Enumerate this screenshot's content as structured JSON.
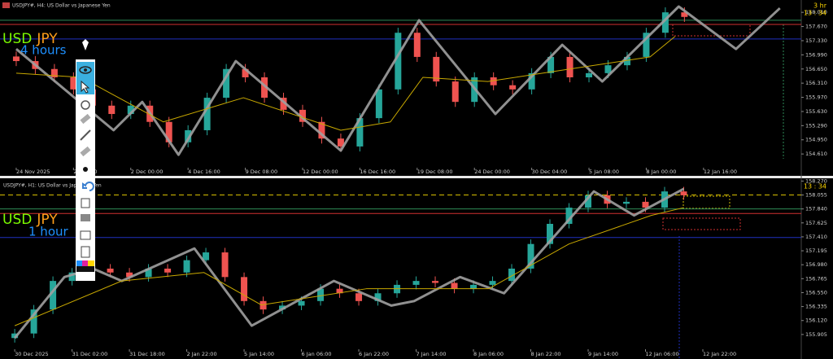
{
  "chart_data": [
    {
      "type": "candlestick",
      "title": "USDJPY#, H4:  US Dollar vs Japanese Yen",
      "label": {
        "base": "USD",
        "quote": "JPY",
        "timeframe": "4 hours"
      },
      "timer": [
        "3 hr",
        "13 : 34"
      ],
      "up_color": "#26a69a",
      "down_color": "#ef5350",
      "x": [
        0,
        1,
        2,
        3,
        4,
        5,
        6,
        7,
        8,
        9,
        10,
        11,
        12,
        13,
        14,
        15,
        16,
        17,
        18,
        19,
        20,
        21,
        22,
        23,
        24,
        25,
        26,
        27,
        28,
        29,
        30,
        31,
        32,
        33,
        34,
        35
      ],
      "open": [
        156.95,
        156.84,
        156.65,
        156.45,
        156.16,
        155.77,
        155.57,
        155.77,
        155.38,
        154.89,
        155.18,
        155.96,
        156.65,
        156.45,
        155.96,
        155.67,
        155.38,
        154.98,
        154.79,
        155.47,
        156.16,
        157.52,
        156.94,
        156.35,
        155.86,
        156.45,
        156.26,
        156.16,
        156.55,
        156.94,
        156.45,
        156.55,
        156.74,
        156.94,
        157.52,
        158.01
      ],
      "high": [
        157.07,
        156.96,
        156.77,
        156.57,
        156.28,
        155.89,
        155.89,
        155.89,
        155.5,
        155.3,
        156.08,
        156.77,
        156.77,
        156.57,
        156.08,
        155.79,
        155.5,
        155.1,
        155.59,
        156.28,
        157.64,
        157.64,
        157.06,
        156.47,
        156.57,
        156.57,
        156.38,
        156.67,
        157.06,
        157.06,
        156.67,
        156.86,
        157.06,
        157.64,
        158.13,
        158.13
      ],
      "low": [
        156.72,
        156.53,
        156.33,
        156.04,
        155.65,
        155.45,
        155.45,
        155.26,
        154.77,
        154.77,
        155.06,
        155.84,
        156.33,
        155.84,
        155.55,
        155.26,
        154.86,
        154.67,
        154.67,
        155.35,
        156.04,
        156.82,
        156.23,
        155.74,
        155.74,
        156.14,
        156.04,
        156.04,
        156.43,
        156.33,
        156.33,
        156.43,
        156.62,
        156.82,
        157.4,
        157.78
      ],
      "close": [
        156.84,
        156.65,
        156.45,
        156.16,
        155.77,
        155.57,
        155.77,
        155.38,
        154.89,
        155.18,
        155.96,
        156.65,
        156.45,
        155.96,
        155.67,
        155.38,
        154.98,
        154.79,
        155.47,
        156.16,
        157.52,
        156.94,
        156.35,
        155.86,
        156.45,
        156.26,
        156.16,
        156.55,
        156.94,
        156.45,
        156.55,
        156.74,
        156.94,
        157.52,
        158.01,
        157.9
      ],
      "series": [
        {
          "color": "#a0a0a0",
          "x": [
            0,
            5.1,
            6.6,
            8.5,
            11.5,
            17,
            21.1,
            25.1,
            28.6,
            30.7,
            34.7,
            37.7,
            40
          ],
          "values": [
            157.13,
            155.18,
            155.86,
            154.59,
            156.84,
            154.69,
            157.82,
            155.57,
            157.23,
            156.35,
            158.15,
            157.13,
            158.11
          ]
        },
        {
          "color": "#c8a800",
          "x": [
            0,
            3.4,
            7.7,
            11.9,
            17,
            19.6,
            21.3,
            24.7,
            29,
            33.2,
            34.5
          ],
          "values": [
            156.55,
            156.45,
            155.38,
            155.96,
            155.18,
            155.38,
            156.45,
            156.35,
            156.65,
            156.94,
            157.43
          ]
        }
      ],
      "levels": [
        {
          "value": 157.82,
          "color": "#2e8b57"
        },
        {
          "value": 157.72,
          "color": "#d03030"
        },
        {
          "value": 157.37,
          "color": "#2030c0"
        }
      ],
      "xlim": [
        -0.85,
        41.12
      ],
      "ylim": [
        154.3,
        158.15
      ],
      "xticks": [
        {
          "value": 0,
          "label": "24 Nov 2025"
        },
        {
          "value": 3,
          "label": "27 Nov 0"
        },
        {
          "value": 6,
          "label": "2 Dec 00:00"
        },
        {
          "value": 9,
          "label": "4 Dec 16:00"
        },
        {
          "value": 12,
          "label": "9 Dec 08:00"
        },
        {
          "value": 15,
          "label": "12 Dec 00:00"
        },
        {
          "value": 18,
          "label": "16 Dec 16:00"
        },
        {
          "value": 21,
          "label": "19 Dec 08:00"
        },
        {
          "value": 24,
          "label": "24 Dec 00:00"
        },
        {
          "value": 27,
          "label": "30 Dec 04:00"
        },
        {
          "value": 30,
          "label": "5 Jan 08:00"
        },
        {
          "value": 33,
          "label": "8 Jan 00:00"
        },
        {
          "value": 36,
          "label": "12 Jan 16:00"
        }
      ],
      "yticks": [
        {
          "value": 158.01,
          "label": "158.010"
        },
        {
          "value": 157.67,
          "label": "157.670"
        },
        {
          "value": 157.33,
          "label": "157.330"
        },
        {
          "value": 156.99,
          "label": "156.990"
        },
        {
          "value": 156.65,
          "label": "156.650"
        },
        {
          "value": 156.31,
          "label": "156.310"
        },
        {
          "value": 155.97,
          "label": "155.970"
        },
        {
          "value": 155.63,
          "label": "155.630"
        },
        {
          "value": 155.29,
          "label": "155.290"
        },
        {
          "value": 154.95,
          "label": "154.950"
        },
        {
          "value": 154.61,
          "label": "154.610"
        }
      ]
    },
    {
      "type": "candlestick",
      "title": "USDJPY#, H1:  US Dollar vs Japanese Yen",
      "label": {
        "base": "USD",
        "quote": "JPY",
        "timeframe": "1 hour"
      },
      "timer": [
        "13 : 34"
      ],
      "up_color": "#26a69a",
      "down_color": "#ef5350",
      "x": [
        0,
        1,
        2,
        3,
        4,
        5,
        6,
        7,
        8,
        9,
        10,
        11,
        12,
        13,
        14,
        15,
        16,
        17,
        18,
        19,
        20,
        21,
        22,
        23,
        24,
        25,
        26,
        27,
        28,
        29,
        30,
        31,
        32,
        33,
        34,
        35
      ],
      "open": [
        155.85,
        155.92,
        156.29,
        156.73,
        156.86,
        156.92,
        156.86,
        156.79,
        156.92,
        156.86,
        157.05,
        157.17,
        156.79,
        156.42,
        156.29,
        156.35,
        156.42,
        156.61,
        156.54,
        156.42,
        156.54,
        156.67,
        156.73,
        156.7,
        156.61,
        156.67,
        156.73,
        156.92,
        157.3,
        157.61,
        157.86,
        158.05,
        157.92,
        157.95,
        157.86,
        158.11
      ],
      "high": [
        155.99,
        156.36,
        156.8,
        156.93,
        156.99,
        156.99,
        156.93,
        156.99,
        156.99,
        157.12,
        157.24,
        157.24,
        156.86,
        156.49,
        156.42,
        156.49,
        156.68,
        156.68,
        156.61,
        156.61,
        156.74,
        156.8,
        156.8,
        156.77,
        156.74,
        156.8,
        156.99,
        157.37,
        157.68,
        157.93,
        158.12,
        158.12,
        158.02,
        158.02,
        158.18,
        158.18
      ],
      "low": [
        155.78,
        155.85,
        156.22,
        156.66,
        156.79,
        156.79,
        156.72,
        156.72,
        156.79,
        156.79,
        156.98,
        156.72,
        156.35,
        156.22,
        156.22,
        156.28,
        156.35,
        156.47,
        156.35,
        156.35,
        156.47,
        156.6,
        156.63,
        156.54,
        156.54,
        156.6,
        156.66,
        156.85,
        157.23,
        157.54,
        157.79,
        157.85,
        157.85,
        157.79,
        157.79,
        157.98
      ],
      "close": [
        155.92,
        156.29,
        156.73,
        156.86,
        156.92,
        156.86,
        156.79,
        156.92,
        156.86,
        157.05,
        157.17,
        156.79,
        156.42,
        156.29,
        156.35,
        156.42,
        156.61,
        156.54,
        156.42,
        156.54,
        156.67,
        156.73,
        156.7,
        156.61,
        156.67,
        156.73,
        156.92,
        157.3,
        157.61,
        157.86,
        158.05,
        157.92,
        157.95,
        157.86,
        158.11,
        158.05
      ],
      "series": [
        {
          "color": "#a0a0a0",
          "x": [
            0,
            2.6,
            4.1,
            5.6,
            9.4,
            12.4,
            16.7,
            19.7,
            20.9,
            23.3,
            25.6,
            30.3,
            32.4,
            35
          ],
          "values": [
            155.85,
            156.79,
            156.92,
            156.73,
            157.23,
            156.04,
            156.73,
            156.35,
            156.42,
            156.79,
            156.54,
            158.11,
            157.74,
            158.15
          ]
        },
        {
          "color": "#c8a800",
          "x": [
            0,
            5.6,
            9.9,
            12.9,
            18.4,
            24.8,
            29,
            33.3,
            35
          ],
          "values": [
            156.04,
            156.73,
            156.86,
            156.36,
            156.61,
            156.61,
            157.3,
            157.74,
            157.86
          ]
        }
      ],
      "levels": [
        {
          "value": 158.055,
          "color": "#d8c000",
          "style": "dashed"
        },
        {
          "value": 157.84,
          "color": "#2e8b57"
        },
        {
          "value": 157.77,
          "color": "#d03030"
        },
        {
          "value": 157.4,
          "color": "#2030c0"
        }
      ],
      "xlim": [
        -0.77,
        41.15
      ],
      "ylim": [
        155.69,
        158.3
      ],
      "xticks": [
        {
          "value": 0,
          "label": "30 Dec 2025"
        },
        {
          "value": 3,
          "label": "31 Dec 02:00"
        },
        {
          "value": 6,
          "label": "31 Dec 18:00"
        },
        {
          "value": 9,
          "label": "2 Jan 22:00"
        },
        {
          "value": 12,
          "label": "5 Jan 14:00"
        },
        {
          "value": 15,
          "label": "6 Jan 06:00"
        },
        {
          "value": 18,
          "label": "6 Jan 22:00"
        },
        {
          "value": 21,
          "label": "7 Jan 14:00"
        },
        {
          "value": 24,
          "label": "8 Jan 06:00"
        },
        {
          "value": 27,
          "label": "8 Jan 22:00"
        },
        {
          "value": 30,
          "label": "9 Jan 14:00"
        },
        {
          "value": 33,
          "label": "12 Jan 06:00"
        },
        {
          "value": 36,
          "label": "12 Jan 22:00"
        }
      ],
      "yticks": [
        {
          "value": 158.27,
          "label": "158.270"
        },
        158.055,
        {
          "value": 157.84,
          "label": "157.840"
        },
        157.625,
        {
          "value": 157.41,
          "label": "157.410"
        },
        157.195,
        {
          "value": 156.98,
          "label": "156.980"
        },
        156.765,
        {
          "value": 156.55,
          "label": "156.550"
        },
        {
          "value": 156.335,
          "label": "156.335"
        },
        {
          "value": 156.12,
          "label": "156.120"
        },
        155.905
      ]
    }
  ]
}
